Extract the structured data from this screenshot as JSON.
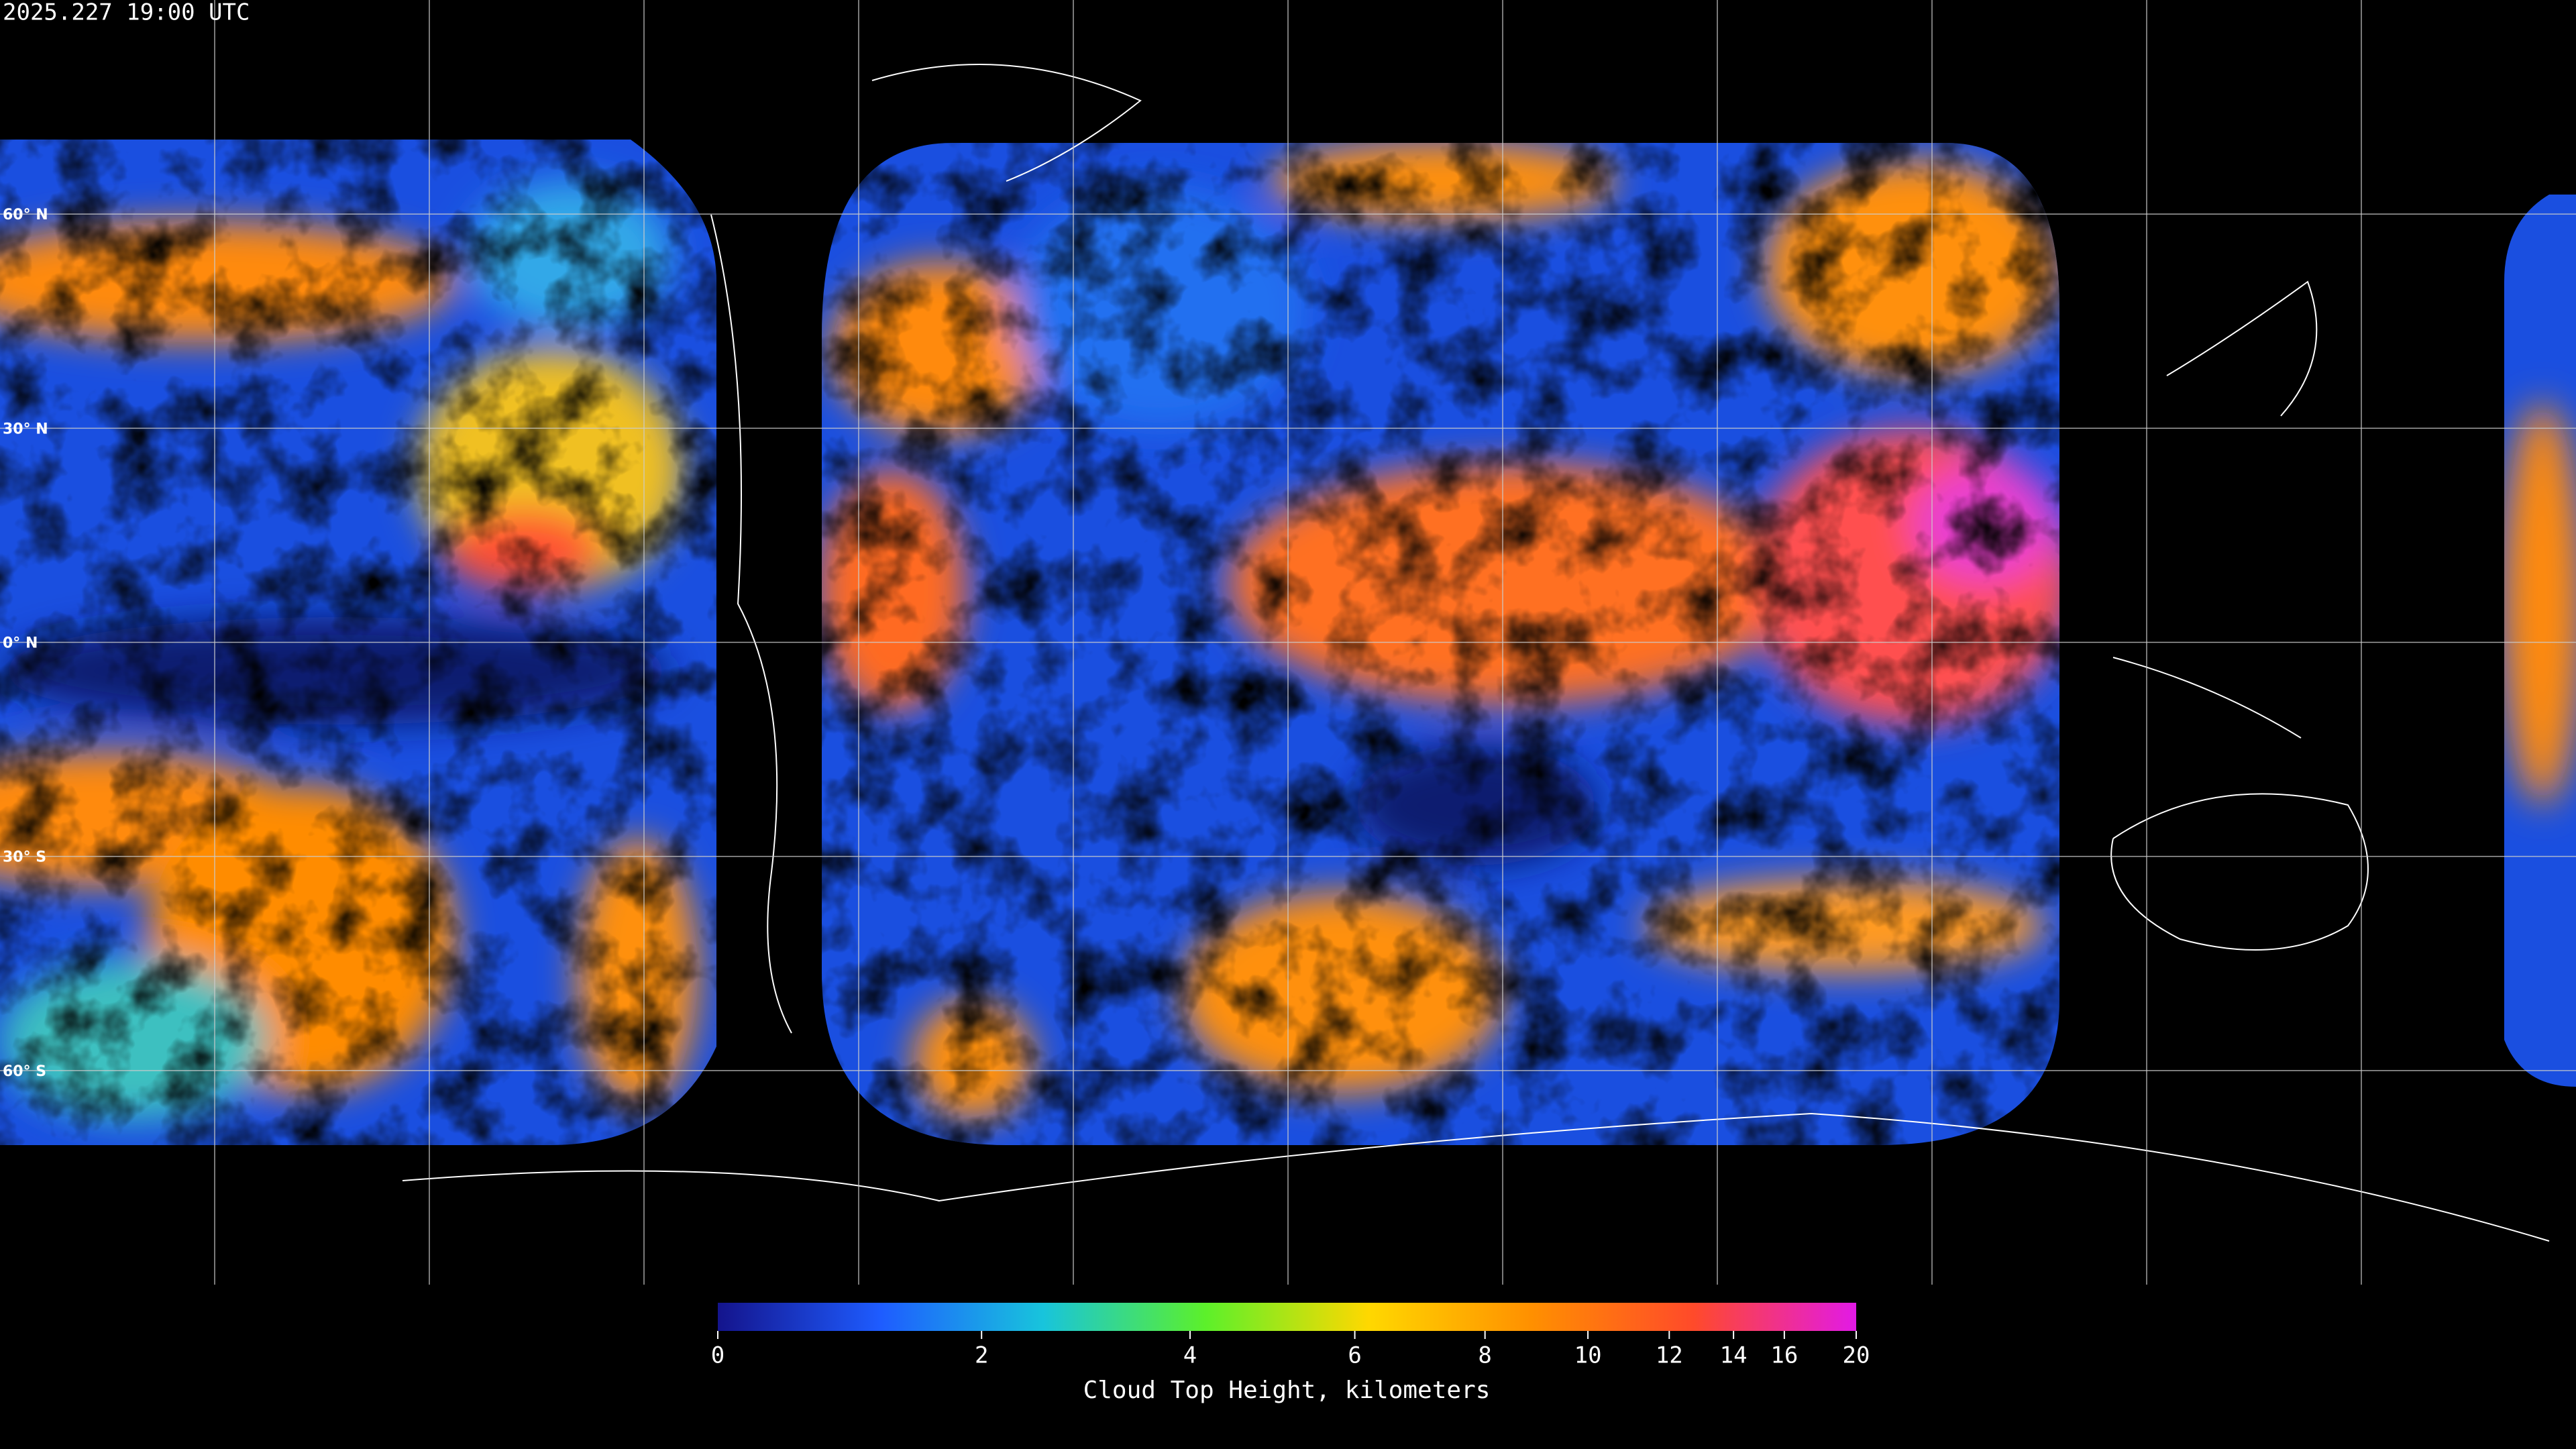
{
  "header": {
    "timestamp": "2025.227 19:00 UTC"
  },
  "map": {
    "latitude_labels": [
      "60° N",
      "30° N",
      "0° N",
      "30° S",
      "60° S"
    ]
  },
  "chart_data": {
    "type": "colorbar",
    "title": "Cloud Top Height, kilometers",
    "xlim": [
      0,
      20
    ],
    "xticks": [
      0,
      2,
      4,
      6,
      8,
      10,
      12,
      14,
      16,
      20
    ],
    "colors": [
      "#14148c",
      "#1e5cff",
      "#18c4dc",
      "#5cf02a",
      "#ffd800",
      "#ff9000",
      "#ff4a2a",
      "#e21ae6"
    ]
  }
}
